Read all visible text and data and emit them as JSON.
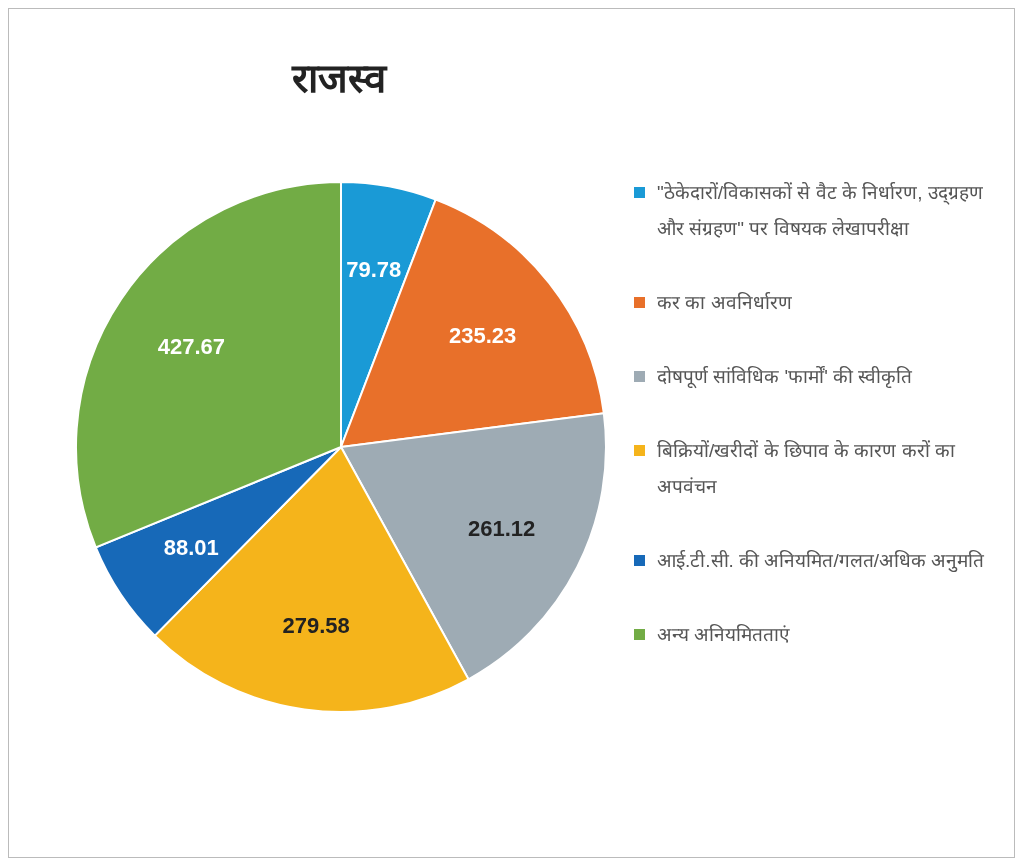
{
  "chart_data": {
    "type": "pie",
    "title": "राजस्व",
    "categories": [
      "\"ठेकेदारों/विकासकों से वैट के निर्धारण, उद्ग्रहण और संग्रहण\" पर विषयक लेखापरीक्षा",
      "कर का अवनिर्धारण",
      "दोषपूर्ण सांविधिक 'फार्मों' की स्वीकृति",
      "बिक्रियों/खरीदों के छिपाव के कारण करों का अपवंचन",
      "आई.टी.सी. की अनियमित/गलत/अधिक अनुमति",
      "अन्य अनियमितताएं"
    ],
    "values": [
      79.78,
      235.23,
      261.12,
      279.58,
      88.01,
      427.67
    ],
    "colors": [
      "#1a9ad6",
      "#e8702a",
      "#9eabb4",
      "#f5b41b",
      "#1769b8",
      "#72ac45"
    ],
    "data_labels": true,
    "legend": "right"
  }
}
